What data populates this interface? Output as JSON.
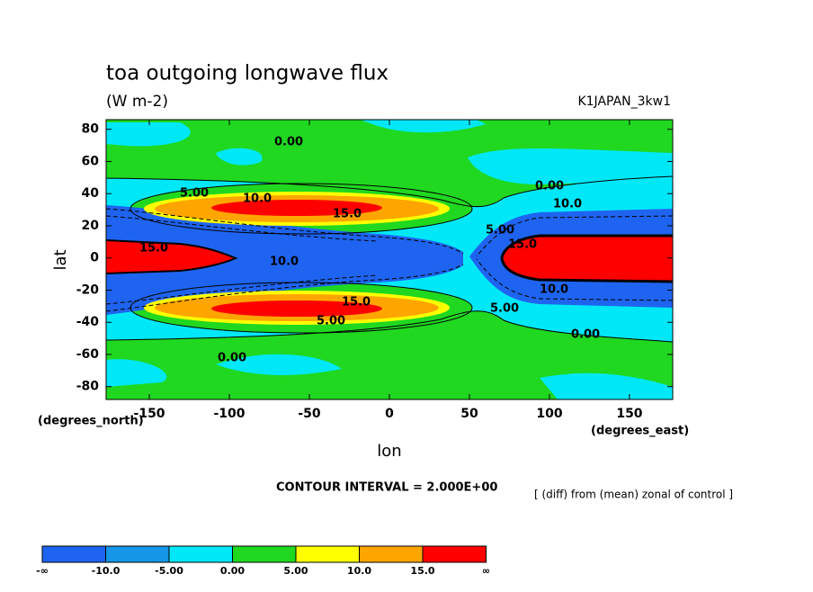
{
  "chart_data": {
    "type": "contour",
    "title": "toa outgoing longwave flux",
    "subtitle": "(W m-2)",
    "dataset": "K1JAPAN_3kw1",
    "xlabel": "lon",
    "ylabel": "lat",
    "xunits": "(degrees_east)",
    "yunits": "(degrees_north)",
    "contour_interval": "CONTOUR INTERVAL = 2.000E+00",
    "note": "[ (diff) from (mean) zonal of control ]",
    "xlim": [
      -177,
      177
    ],
    "ylim": [
      -88,
      86
    ],
    "xticks": [
      -150,
      -100,
      -50,
      0,
      50,
      100,
      150
    ],
    "yticks": [
      -80,
      -60,
      -40,
      -20,
      0,
      20,
      40,
      60,
      80
    ],
    "colorbar": {
      "labels": [
        "-∞",
        "-10.0",
        "-5.00",
        "0.00",
        "5.00",
        "10.0",
        "15.0",
        "∞"
      ],
      "colors": [
        "#1f64f0",
        "#1696e6",
        "#00e8f8",
        "#20d820",
        "#ffff00",
        "#ffa500",
        "#ff0000"
      ]
    },
    "contour_labels": [
      "0.00",
      "5.00",
      "10.0",
      "15.0"
    ]
  }
}
